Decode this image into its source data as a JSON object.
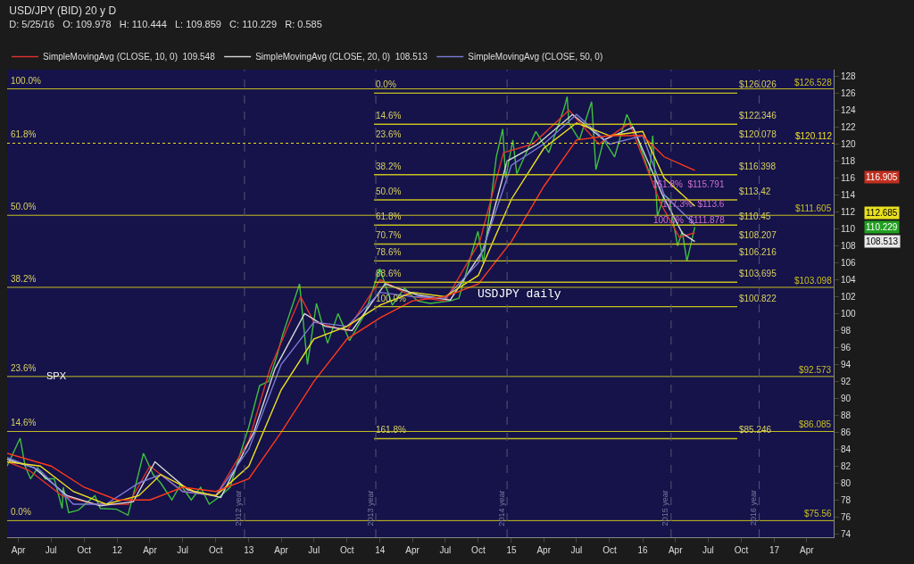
{
  "chart_data": {
    "type": "line",
    "title": "USD/JPY (BID) 20 y D",
    "subtitle": "D: 5/25/16   O: 109.978   H: 110.444   L: 109.859   C: 110.229   R: 0.585",
    "legend": "top left",
    "grid": false,
    "marker": "none",
    "line_style": "solid",
    "xlim": [
      "2011-03-01",
      "2017-06-15"
    ],
    "xticks": [
      {
        "value": "2011-04-01",
        "label": "Apr"
      },
      {
        "value": "2011-07-01",
        "label": "Jul"
      },
      {
        "value": "2011-10-01",
        "label": "Oct"
      },
      {
        "value": "2012-01-01",
        "label": "12"
      },
      {
        "value": "2012-04-01",
        "label": "Apr"
      },
      {
        "value": "2012-07-01",
        "label": "Jul"
      },
      {
        "value": "2012-10-01",
        "label": "Oct"
      },
      {
        "value": "2013-01-01",
        "label": "13"
      },
      {
        "value": "2013-04-01",
        "label": "Apr"
      },
      {
        "value": "2013-07-01",
        "label": "Jul"
      },
      {
        "value": "2013-10-01",
        "label": "Oct"
      },
      {
        "value": "2014-01-01",
        "label": "14"
      },
      {
        "value": "2014-04-01",
        "label": "Apr"
      },
      {
        "value": "2014-07-01",
        "label": "Jul"
      },
      {
        "value": "2014-10-01",
        "label": "Oct"
      },
      {
        "value": "2015-01-01",
        "label": "15"
      },
      {
        "value": "2015-04-01",
        "label": "Apr"
      },
      {
        "value": "2015-07-01",
        "label": "Jul"
      },
      {
        "value": "2015-10-01",
        "label": "Oct"
      },
      {
        "value": "2016-01-01",
        "label": "16"
      },
      {
        "value": "2016-04-01",
        "label": "Apr"
      },
      {
        "value": "2016-07-01",
        "label": "Jul"
      },
      {
        "value": "2016-10-01",
        "label": "Oct"
      },
      {
        "value": "2017-01-01",
        "label": "17"
      },
      {
        "value": "2017-04-01",
        "label": "Apr"
      }
    ],
    "ylim": [
      73.6,
      128.8
    ],
    "yticks": [
      74,
      76,
      78,
      80,
      82,
      84,
      86,
      88,
      90,
      92,
      94,
      96,
      98,
      100,
      102,
      104,
      106,
      108,
      110,
      112,
      114,
      116,
      118,
      120,
      122,
      124,
      126,
      128
    ],
    "series": [
      {
        "color": "#3fbf3f",
        "x": [
          "2011-03-01",
          "2011-04-06",
          "2011-04-20",
          "2011-05-05",
          "2011-05-25",
          "2011-06-15",
          "2011-07-10",
          "2011-08-01",
          "2011-08-04",
          "2011-08-19",
          "2011-09-15",
          "2011-10-31",
          "2011-11-15",
          "2011-12-30",
          "2012-01-31",
          "2012-02-20",
          "2012-03-14",
          "2012-04-10",
          "2012-05-01",
          "2012-06-01",
          "2012-06-25",
          "2012-07-25",
          "2012-08-20",
          "2012-09-13",
          "2012-10-15",
          "2012-11-10",
          "2012-12-01",
          "2012-12-31",
          "2013-01-31",
          "2013-02-25",
          "2013-03-20",
          "2013-04-05",
          "2013-05-22",
          "2013-06-13",
          "2013-07-08",
          "2013-08-08",
          "2013-09-06",
          "2013-10-08",
          "2013-11-20",
          "2013-12-31",
          "2014-02-04",
          "2014-03-10",
          "2014-04-15",
          "2014-05-20",
          "2014-07-15",
          "2014-08-08",
          "2014-09-30",
          "2014-10-15",
          "2014-11-20",
          "2014-12-08",
          "2014-12-16",
          "2015-01-05",
          "2015-01-16",
          "2015-03-10",
          "2015-04-15",
          "2015-05-28",
          "2015-06-05",
          "2015-06-10",
          "2015-07-09",
          "2015-08-12",
          "2015-08-24",
          "2015-09-15",
          "2015-10-15",
          "2015-11-18",
          "2015-12-15",
          "2016-01-20",
          "2016-01-29",
          "2016-02-11",
          "2016-03-01",
          "2016-03-15",
          "2016-04-07",
          "2016-04-20",
          "2016-05-03",
          "2016-05-25"
        ],
        "values": [
          82,
          85.3,
          82,
          80.5,
          81.8,
          80.5,
          80.5,
          77,
          79.5,
          76.5,
          76.8,
          78.5,
          77,
          76.9,
          76.2,
          79.5,
          83.5,
          81,
          80,
          78,
          79.8,
          78,
          79.5,
          77.5,
          78.5,
          79.5,
          82.5,
          86.5,
          91.5,
          92,
          95,
          97.5,
          103.5,
          94,
          101.2,
          96.5,
          100,
          96.8,
          100,
          105.3,
          101,
          103,
          101.5,
          101.2,
          101.5,
          101.8,
          109.7,
          106,
          118.5,
          121.8,
          116,
          120.5,
          116.5,
          121.5,
          119,
          124.3,
          125.6,
          122.5,
          120.5,
          125,
          117,
          120.5,
          118.5,
          123.5,
          121,
          116.5,
          121,
          111.5,
          114,
          113.5,
          108,
          109.7,
          106.2,
          110.22
        ]
      },
      {
        "name": "SimpleMovingAvg (CLOSE, 10, 0)  109.548",
        "color": "#e0322a",
        "x": [
          "2011-03-01",
          "2011-05-01",
          "2011-08-01",
          "2011-11-01",
          "2012-02-01",
          "2012-04-01",
          "2012-07-01",
          "2012-10-01",
          "2013-01-01",
          "2013-03-01",
          "2013-05-25",
          "2013-07-01",
          "2013-10-01",
          "2014-01-01",
          "2014-04-01",
          "2014-07-01",
          "2014-10-05",
          "2014-12-10",
          "2015-03-01",
          "2015-06-10",
          "2015-09-01",
          "2015-11-25",
          "2016-02-20",
          "2016-04-12",
          "2016-05-25"
        ],
        "values": [
          82.5,
          81.5,
          78.5,
          77.5,
          77.5,
          82,
          79,
          78.5,
          85,
          93.5,
          102,
          99,
          98,
          104,
          102,
          101.5,
          108.5,
          119,
          120,
          124,
          120,
          122.5,
          113,
          109,
          109.548
        ]
      },
      {
        "name": "SimpleMovingAvg (CLOSE, 20, 0)  108.513",
        "color": "#d8d8d8",
        "x": [
          "2011-03-01",
          "2011-05-15",
          "2011-08-15",
          "2011-11-15",
          "2012-02-15",
          "2012-04-15",
          "2012-07-15",
          "2012-10-15",
          "2013-01-15",
          "2013-03-15",
          "2013-06-05",
          "2013-08-01",
          "2013-10-15",
          "2014-01-15",
          "2014-04-15",
          "2014-07-15",
          "2014-10-15",
          "2014-12-20",
          "2015-03-15",
          "2015-06-20",
          "2015-09-15",
          "2015-12-05",
          "2016-02-25",
          "2016-04-20",
          "2016-05-25"
        ],
        "values": [
          82.8,
          81.8,
          78.5,
          77.3,
          77.8,
          82.5,
          79.2,
          78.3,
          86,
          93.5,
          100,
          98.5,
          98,
          103.5,
          102.2,
          101.6,
          107.5,
          118,
          120,
          123.5,
          120.5,
          122,
          114,
          109.5,
          108.513
        ]
      },
      {
        "name": "SimpleMovingAvg (CLOSE, 50, 0)",
        "color": "#7b7bd8",
        "x": [
          "2011-03-01",
          "2011-06-01",
          "2011-09-01",
          "2011-12-01",
          "2012-03-01",
          "2012-05-01",
          "2012-07-01",
          "2012-10-01",
          "2013-01-01",
          "2013-04-01",
          "2013-07-01",
          "2013-10-01",
          "2014-01-01",
          "2014-04-01",
          "2014-07-01",
          "2014-10-01",
          "2015-01-01",
          "2015-04-01",
          "2015-07-01",
          "2015-10-01",
          "2016-01-01",
          "2016-03-01",
          "2016-05-25"
        ],
        "values": [
          83,
          81.5,
          77.5,
          77.5,
          80,
          81,
          79,
          78.5,
          84,
          94,
          99,
          98.5,
          102.5,
          102,
          101.8,
          106,
          117.5,
          120,
          123.5,
          120,
          121,
          114,
          110.5
        ]
      },
      {
        "color": "#f0e020",
        "x": [
          "2011-03-01",
          "2011-06-01",
          "2011-09-01",
          "2011-12-01",
          "2012-03-01",
          "2012-05-01",
          "2012-08-01",
          "2012-10-01",
          "2013-01-01",
          "2013-04-01",
          "2013-07-01",
          "2013-10-01",
          "2014-01-01",
          "2014-04-01",
          "2014-07-01",
          "2014-10-01",
          "2015-01-01",
          "2015-04-01",
          "2015-07-01",
          "2015-10-01",
          "2016-01-01",
          "2016-03-01",
          "2016-05-25"
        ],
        "values": [
          82.5,
          82,
          79,
          77.5,
          78.5,
          81,
          79,
          78.5,
          82,
          91,
          97,
          98.5,
          101,
          102.5,
          102,
          104.5,
          113.5,
          119.5,
          122.5,
          121,
          121.5,
          116,
          112.68
        ]
      },
      {
        "color": "#ff3a1a",
        "x": [
          "2011-03-01",
          "2011-07-01",
          "2011-10-01",
          "2012-01-01",
          "2012-04-01",
          "2012-07-01",
          "2012-10-01",
          "2013-01-01",
          "2013-04-01",
          "2013-07-01",
          "2013-10-01",
          "2014-01-01",
          "2014-04-01",
          "2014-07-01",
          "2014-10-01",
          "2015-01-01",
          "2015-04-01",
          "2015-07-01",
          "2015-10-01",
          "2016-01-01",
          "2016-03-01",
          "2016-05-25"
        ],
        "values": [
          83.5,
          82,
          79.5,
          78,
          78,
          79.5,
          79,
          80.5,
          86,
          92,
          97,
          99.5,
          101.5,
          102,
          103.5,
          108.5,
          115,
          120.5,
          121,
          121,
          118.5,
          116.9
        ]
      },
      {
        "color": "#c8c020",
        "x": [
          "2013-12-15",
          "2016-09-20"
        ],
        "values": [
          126.026,
          126.026
        ]
      },
      {
        "color": "#c8c020",
        "x": [
          "2013-12-15",
          "2016-09-20"
        ],
        "values": [
          122.346,
          122.346
        ]
      },
      {
        "color": "#c8c020",
        "x": [
          "2013-12-15",
          "2016-09-20"
        ],
        "values": [
          116.398,
          116.398
        ]
      },
      {
        "color": "#c8c020",
        "x": [
          "2013-12-15",
          "2016-09-20"
        ],
        "values": [
          113.42,
          113.42
        ]
      },
      {
        "color": "#c8c020",
        "x": [
          "2013-12-15",
          "2016-09-20"
        ],
        "values": [
          110.45,
          110.45
        ]
      },
      {
        "color": "#c8c020",
        "x": [
          "2013-12-15",
          "2016-09-20"
        ],
        "values": [
          108.207,
          108.207
        ]
      },
      {
        "color": "#c8c020",
        "x": [
          "2013-12-15",
          "2016-09-20"
        ],
        "values": [
          106.216,
          106.216
        ]
      },
      {
        "color": "#c8c020",
        "x": [
          "2013-12-15",
          "2016-09-20"
        ],
        "values": [
          103.695,
          103.695
        ]
      },
      {
        "color": "#c8c020",
        "x": [
          "2013-12-15",
          "2016-09-20"
        ],
        "values": [
          100.822,
          100.822
        ]
      },
      {
        "color": "#c8c020",
        "x": [
          "2013-12-15",
          "2016-09-20"
        ],
        "values": [
          85.246,
          85.246
        ]
      }
    ],
    "ref_lines": [
      {
        "axis": "y",
        "value": 126.528,
        "label": "$126.528",
        "color": "#c8c020",
        "line_style": "solid"
      },
      {
        "axis": "y",
        "value": 120.112,
        "label": "$120.112",
        "color": "#f0e020",
        "line_style": "dotted"
      },
      {
        "axis": "y",
        "value": 111.605,
        "label": "$111.605",
        "color": "#c8c020",
        "line_style": "solid"
      },
      {
        "axis": "y",
        "value": 103.098,
        "label": "$103.098",
        "color": "#c8c020",
        "line_style": "solid"
      },
      {
        "axis": "y",
        "value": 92.573,
        "label": "$92.573",
        "color": "#c8c020",
        "line_style": "solid"
      },
      {
        "axis": "y",
        "value": 86.085,
        "label": "$86.085",
        "color": "#c8c020",
        "line_style": "solid"
      },
      {
        "axis": "y",
        "value": 75.56,
        "label": "$75.56",
        "color": "#c8c020",
        "line_style": "solid"
      },
      {
        "axis": "x",
        "value": "2012-12-20",
        "label": "2012 year",
        "color": "#555577",
        "line_style": "dashed"
      },
      {
        "axis": "x",
        "value": "2013-12-20",
        "label": "2013 year",
        "color": "#555577",
        "line_style": "dashed"
      },
      {
        "axis": "x",
        "value": "2014-12-20",
        "label": "2014 year",
        "color": "#555577",
        "line_style": "dashed"
      },
      {
        "axis": "x",
        "value": "2016-03-20",
        "label": "2015 year",
        "color": "#555577",
        "line_style": "dashed"
      },
      {
        "axis": "x",
        "value": "2016-11-20",
        "label": "2016 year",
        "color": "#555577",
        "line_style": "dashed"
      }
    ],
    "annotations": [
      {
        "text": "100.0%",
        "x": "2011-03-05",
        "y": 126.528
      },
      {
        "text": "61.8%",
        "x": "2011-03-05",
        "y": 120.112
      },
      {
        "text": "50.0%",
        "x": "2011-03-05",
        "y": 111.605
      },
      {
        "text": "38.2%",
        "x": "2011-03-05",
        "y": 103.098
      },
      {
        "text": "23.6%",
        "x": "2011-03-05",
        "y": 92.573
      },
      {
        "text": "14.6%",
        "x": "2011-03-05",
        "y": 86.085
      },
      {
        "text": "0.0%",
        "x": "2011-03-05",
        "y": 75.56
      },
      {
        "text": "0.0%",
        "x": "2013-12-15",
        "y": 126.026
      },
      {
        "text": "14.6%",
        "x": "2013-12-15",
        "y": 122.346
      },
      {
        "text": "23.6%",
        "x": "2013-12-15",
        "y": 120.112
      },
      {
        "text": "38.2%",
        "x": "2013-12-15",
        "y": 116.398
      },
      {
        "text": "50.0%",
        "x": "2013-12-15",
        "y": 113.42
      },
      {
        "text": "61.8%",
        "x": "2013-12-15",
        "y": 110.45
      },
      {
        "text": "70.7%",
        "x": "2013-12-15",
        "y": 108.207
      },
      {
        "text": "78.6%",
        "x": "2013-12-15",
        "y": 106.216
      },
      {
        "text": "88.6%",
        "x": "2013-12-15",
        "y": 103.695
      },
      {
        "text": "100.0%",
        "x": "2013-12-15",
        "y": 100.822
      },
      {
        "text": "161.8%",
        "x": "2013-12-15",
        "y": 85.246
      },
      {
        "text": "$126.026",
        "x": "2016-09-20",
        "y": 126.026
      },
      {
        "text": "$122.346",
        "x": "2016-09-20",
        "y": 122.346
      },
      {
        "text": "$120.078",
        "x": "2016-09-20",
        "y": 120.112
      },
      {
        "text": "$116.398",
        "x": "2016-09-20",
        "y": 116.398
      },
      {
        "text": "$113.42",
        "x": "2016-09-20",
        "y": 113.42
      },
      {
        "text": "$110.45",
        "x": "2016-09-20",
        "y": 110.45
      },
      {
        "text": "$108.207",
        "x": "2016-09-20",
        "y": 108.207
      },
      {
        "text": "$106.216",
        "x": "2016-09-20",
        "y": 106.216
      },
      {
        "text": "$103.695",
        "x": "2016-09-20",
        "y": 103.695
      },
      {
        "text": "$100.822",
        "x": "2016-09-20",
        "y": 100.822
      },
      {
        "text": "$85.246",
        "x": "2016-09-20",
        "y": 85.246
      },
      "161.8%  $115.791",
      "127.3%  $113.6",
      "100.0%  $111.878",
      "116.905",
      "112.685",
      "110.229",
      "108.513",
      "SPX",
      "USDJPY daily"
    ]
  }
}
